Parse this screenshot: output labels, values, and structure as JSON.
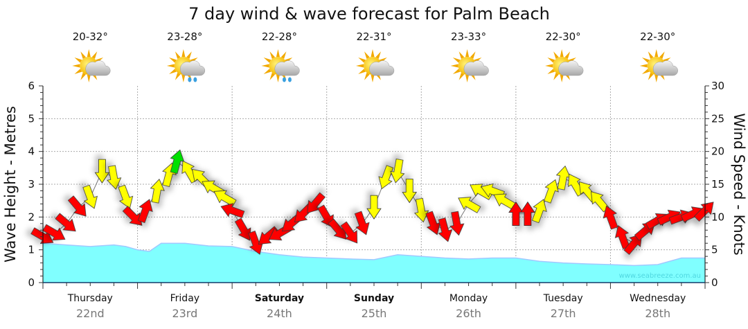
{
  "title": "7 day wind & wave forecast for Palm Beach",
  "watermark": "www.seabreeze.com.au",
  "days": [
    {
      "name": "Thursday",
      "date": "22nd",
      "temp": "20-32°",
      "icon": "sun-cloud-icon",
      "bold": false
    },
    {
      "name": "Friday",
      "date": "23rd",
      "temp": "23-28°",
      "icon": "sun-cloud-rain-icon",
      "bold": false
    },
    {
      "name": "Saturday",
      "date": "24th",
      "temp": "22-28°",
      "icon": "sun-cloud-rain-icon",
      "bold": true
    },
    {
      "name": "Sunday",
      "date": "25th",
      "temp": "22-31°",
      "icon": "sun-cloud-icon",
      "bold": true
    },
    {
      "name": "Monday",
      "date": "26th",
      "temp": "23-33°",
      "icon": "sun-cloud-icon",
      "bold": false
    },
    {
      "name": "Tuesday",
      "date": "27th",
      "temp": "22-30°",
      "icon": "sun-cloud-icon",
      "bold": false
    },
    {
      "name": "Wednesday",
      "date": "28th",
      "temp": "22-30°",
      "icon": "sun-cloud-icon",
      "bold": false
    }
  ],
  "colors": {
    "wave": "#80ffff",
    "wave_line": "#a0c8ff",
    "red": "#ff0000",
    "yellow": "#ffff00",
    "green": "#00e000"
  },
  "chart_data": {
    "type": "area",
    "title": "7 day wind & wave forecast for Palm Beach",
    "ylabel_left": "Wave Height - Metres",
    "ylabel_right": "Wind Speed - Knots",
    "ylim_left": [
      0,
      6
    ],
    "ylim_right": [
      0,
      30
    ],
    "yticks_left": [
      "0",
      "1",
      "2",
      "3",
      "4",
      "5",
      "6"
    ],
    "yticks_right": [
      "0",
      "5",
      "10",
      "15",
      "20",
      "25",
      "30"
    ],
    "x_hours_range": [
      0,
      168
    ],
    "grid": true,
    "wave_series": {
      "name": "Wave Height",
      "hours": [
        0,
        6,
        12,
        18,
        21,
        24,
        27,
        30,
        36,
        42,
        48,
        54,
        60,
        66,
        72,
        78,
        84,
        90,
        96,
        102,
        108,
        114,
        120,
        126,
        132,
        138,
        144,
        150,
        156,
        162,
        168
      ],
      "values": [
        1.2,
        1.15,
        1.1,
        1.15,
        1.1,
        1.0,
        0.95,
        1.2,
        1.2,
        1.12,
        1.1,
        0.95,
        0.85,
        0.78,
        0.75,
        0.72,
        0.7,
        0.85,
        0.8,
        0.75,
        0.72,
        0.75,
        0.75,
        0.65,
        0.6,
        0.57,
        0.55,
        0.52,
        0.55,
        0.75,
        0.75
      ]
    },
    "wind_series": {
      "name": "Wind Speed",
      "points": [
        {
          "h": 0,
          "kt": 7,
          "dir": 120,
          "c": "red"
        },
        {
          "h": 3,
          "kt": 7.5,
          "dir": 120,
          "c": "red"
        },
        {
          "h": 6,
          "kt": 9,
          "dir": 130,
          "c": "red"
        },
        {
          "h": 9,
          "kt": 11.5,
          "dir": 140,
          "c": "red"
        },
        {
          "h": 12,
          "kt": 13,
          "dir": 160,
          "c": "yellow"
        },
        {
          "h": 15,
          "kt": 17,
          "dir": 180,
          "c": "yellow"
        },
        {
          "h": 18,
          "kt": 16,
          "dir": 170,
          "c": "yellow"
        },
        {
          "h": 21,
          "kt": 13,
          "dir": 160,
          "c": "yellow"
        },
        {
          "h": 23,
          "kt": 10,
          "dir": 135,
          "c": "red"
        },
        {
          "h": 26,
          "kt": 11,
          "dir": 20,
          "c": "red"
        },
        {
          "h": 29,
          "kt": 14,
          "dir": 10,
          "c": "yellow"
        },
        {
          "h": 32,
          "kt": 16.5,
          "dir": 15,
          "c": "yellow"
        },
        {
          "h": 34,
          "kt": 18.5,
          "dir": 15,
          "c": "green"
        },
        {
          "h": 37,
          "kt": 17,
          "dir": 330,
          "c": "yellow"
        },
        {
          "h": 40,
          "kt": 16,
          "dir": 315,
          "c": "yellow"
        },
        {
          "h": 43,
          "kt": 14.5,
          "dir": 300,
          "c": "yellow"
        },
        {
          "h": 46,
          "kt": 13,
          "dir": 300,
          "c": "yellow"
        },
        {
          "h": 48,
          "kt": 11,
          "dir": 290,
          "c": "red"
        },
        {
          "h": 51,
          "kt": 8,
          "dir": 150,
          "c": "red"
        },
        {
          "h": 54,
          "kt": 6,
          "dir": 160,
          "c": "red"
        },
        {
          "h": 57,
          "kt": 7,
          "dir": 230,
          "c": "red"
        },
        {
          "h": 60,
          "kt": 7.5,
          "dir": 240,
          "c": "red"
        },
        {
          "h": 63,
          "kt": 9,
          "dir": 230,
          "c": "red"
        },
        {
          "h": 66,
          "kt": 10.5,
          "dir": 225,
          "c": "red"
        },
        {
          "h": 69,
          "kt": 12,
          "dir": 220,
          "c": "red"
        },
        {
          "h": 72,
          "kt": 10,
          "dir": 150,
          "c": "red"
        },
        {
          "h": 75,
          "kt": 8,
          "dir": 140,
          "c": "red"
        },
        {
          "h": 78,
          "kt": 7.5,
          "dir": 145,
          "c": "red"
        },
        {
          "h": 81,
          "kt": 9,
          "dir": 160,
          "c": "red"
        },
        {
          "h": 84,
          "kt": 11.5,
          "dir": 180,
          "c": "yellow"
        },
        {
          "h": 87,
          "kt": 16,
          "dir": 200,
          "c": "yellow"
        },
        {
          "h": 90,
          "kt": 17,
          "dir": 190,
          "c": "yellow"
        },
        {
          "h": 93,
          "kt": 14,
          "dir": 180,
          "c": "yellow"
        },
        {
          "h": 96,
          "kt": 11,
          "dir": 170,
          "c": "yellow"
        },
        {
          "h": 99,
          "kt": 9,
          "dir": 160,
          "c": "red"
        },
        {
          "h": 102,
          "kt": 8,
          "dir": 165,
          "c": "red"
        },
        {
          "h": 105,
          "kt": 9,
          "dir": 170,
          "c": "red"
        },
        {
          "h": 108,
          "kt": 12,
          "dir": 300,
          "c": "yellow"
        },
        {
          "h": 111,
          "kt": 14,
          "dir": 300,
          "c": "yellow"
        },
        {
          "h": 114,
          "kt": 14,
          "dir": 290,
          "c": "yellow"
        },
        {
          "h": 117,
          "kt": 12.5,
          "dir": 300,
          "c": "yellow"
        },
        {
          "h": 120,
          "kt": 10.5,
          "dir": 0,
          "c": "red"
        },
        {
          "h": 123,
          "kt": 10.5,
          "dir": 0,
          "c": "red"
        },
        {
          "h": 126,
          "kt": 11,
          "dir": 20,
          "c": "yellow"
        },
        {
          "h": 129,
          "kt": 14,
          "dir": 20,
          "c": "yellow"
        },
        {
          "h": 132,
          "kt": 16,
          "dir": 10,
          "c": "yellow"
        },
        {
          "h": 135,
          "kt": 15,
          "dir": 330,
          "c": "yellow"
        },
        {
          "h": 138,
          "kt": 14,
          "dir": 320,
          "c": "yellow"
        },
        {
          "h": 141,
          "kt": 12.5,
          "dir": 320,
          "c": "yellow"
        },
        {
          "h": 144,
          "kt": 10,
          "dir": 340,
          "c": "red"
        },
        {
          "h": 147,
          "kt": 7,
          "dir": 340,
          "c": "red"
        },
        {
          "h": 150,
          "kt": 6,
          "dir": 40,
          "c": "red"
        },
        {
          "h": 153,
          "kt": 8,
          "dir": 50,
          "c": "red"
        },
        {
          "h": 156,
          "kt": 9.5,
          "dir": 60,
          "c": "red"
        },
        {
          "h": 159,
          "kt": 10,
          "dir": 65,
          "c": "red"
        },
        {
          "h": 162,
          "kt": 10,
          "dir": 70,
          "c": "red"
        },
        {
          "h": 165,
          "kt": 10.5,
          "dir": 65,
          "c": "red"
        },
        {
          "h": 168,
          "kt": 11,
          "dir": 45,
          "c": "red"
        }
      ]
    }
  }
}
